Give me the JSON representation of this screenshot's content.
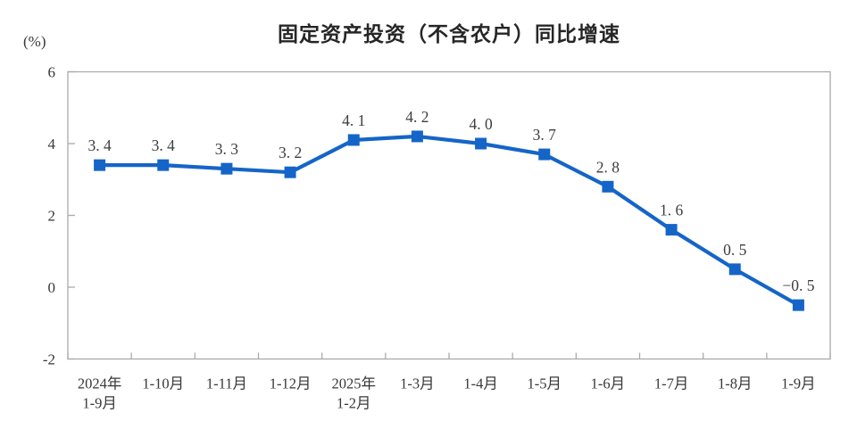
{
  "chart_data": {
    "type": "line",
    "title": "固定资产投资（不含农户）同比增速",
    "unit_label": "(%)",
    "categories": [
      [
        "2024年",
        "1-9月"
      ],
      [
        "1-10月"
      ],
      [
        "1-11月"
      ],
      [
        "1-12月"
      ],
      [
        "2025年",
        "1-2月"
      ],
      [
        "1-3月"
      ],
      [
        "1-4月"
      ],
      [
        "1-5月"
      ],
      [
        "1-6月"
      ],
      [
        "1-7月"
      ],
      [
        "1-8月"
      ],
      [
        "1-9月"
      ]
    ],
    "values": [
      3.4,
      3.4,
      3.3,
      3.2,
      4.1,
      4.2,
      4.0,
      3.7,
      2.8,
      1.6,
      0.5,
      -0.5
    ],
    "value_labels": [
      "3. 4",
      "3. 4",
      "3. 3",
      "3. 2",
      "4. 1",
      "4. 2",
      "4. 0",
      "3. 7",
      "2. 8",
      "1. 6",
      "0. 5",
      "−0. 5"
    ],
    "ylim": [
      -2,
      6
    ],
    "yticks": [
      6,
      4,
      2,
      0,
      -2
    ],
    "grid": false,
    "legend": "none",
    "marker_shape": "square",
    "colors": {
      "line": "#1565c8",
      "marker": "#1565c8",
      "axis": "#aaaaaa",
      "tick_text": "#383838",
      "data_label_text": "#3d3d3d",
      "title_text": "#262626"
    }
  }
}
